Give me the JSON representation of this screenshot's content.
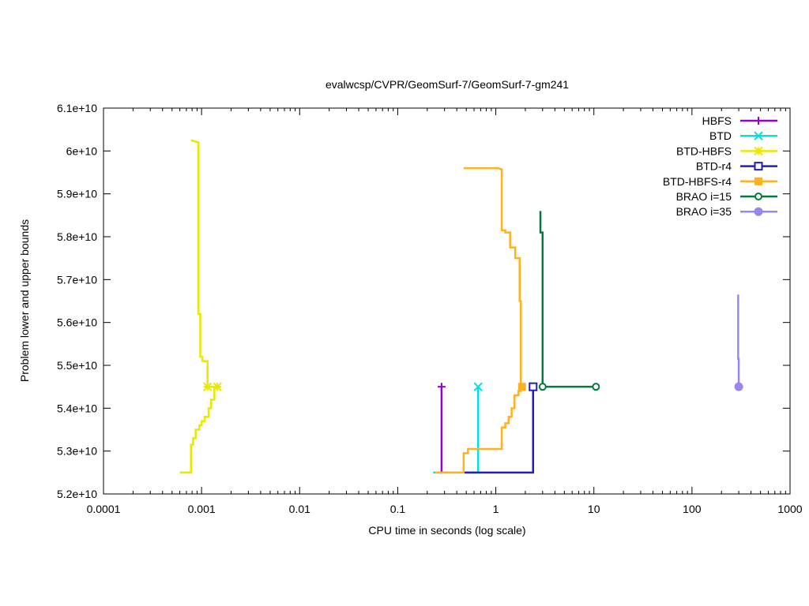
{
  "chart_data": {
    "type": "line",
    "title": "evalwcsp/CVPR/GeomSurf-7/GeomSurf-7-gm241",
    "xlabel": "CPU time in seconds (log scale)",
    "ylabel": "Problem lower and upper bounds",
    "x_scale": "log",
    "xlim": [
      0.0001,
      1000
    ],
    "ylim": [
      52000000000,
      61000000000
    ],
    "x_ticks": [
      {
        "value": 0.0001,
        "label": "0.0001"
      },
      {
        "value": 0.001,
        "label": "0.001"
      },
      {
        "value": 0.01,
        "label": "0.01"
      },
      {
        "value": 0.1,
        "label": "0.1"
      },
      {
        "value": 1,
        "label": "1"
      },
      {
        "value": 10,
        "label": "10"
      },
      {
        "value": 100,
        "label": "100"
      },
      {
        "value": 1000,
        "label": "1000"
      }
    ],
    "y_ticks": [
      {
        "value": 52000000000,
        "label": "5.2e+10"
      },
      {
        "value": 53000000000,
        "label": "5.3e+10"
      },
      {
        "value": 54000000000,
        "label": "5.4e+10"
      },
      {
        "value": 55000000000,
        "label": "5.5e+10"
      },
      {
        "value": 56000000000,
        "label": "5.6e+10"
      },
      {
        "value": 57000000000,
        "label": "5.7e+10"
      },
      {
        "value": 58000000000,
        "label": "5.8e+10"
      },
      {
        "value": 59000000000,
        "label": "5.9e+10"
      },
      {
        "value": 60000000000,
        "label": "6e+10"
      },
      {
        "value": 61000000000,
        "label": "6.1e+10"
      }
    ],
    "grid": false,
    "legend_position": "top-right",
    "series": [
      {
        "name": "HBFS",
        "color": "#9400d3",
        "marker": "plus",
        "points": [
          [
            0.26,
            52500000000
          ],
          [
            0.28,
            52500000000
          ],
          [
            0.28,
            54500000000
          ]
        ],
        "marker_points": [
          [
            0.28,
            54500000000
          ]
        ]
      },
      {
        "name": "BTD",
        "color": "#00e0e0",
        "marker": "cross",
        "points": [
          [
            0.23,
            52500000000
          ],
          [
            0.66,
            52500000000
          ],
          [
            0.66,
            54500000000
          ]
        ],
        "marker_points": [
          [
            0.66,
            54500000000
          ]
        ]
      },
      {
        "name": "BTD-HBFS",
        "color": "#e8e800",
        "marker": "star",
        "points": [
          [
            0.0006,
            52500000000
          ],
          [
            0.00078,
            52500000000
          ],
          [
            0.00078,
            53150000000
          ],
          [
            0.00082,
            53150000000
          ],
          [
            0.00082,
            53300000000
          ],
          [
            0.00087,
            53300000000
          ],
          [
            0.00087,
            53500000000
          ],
          [
            0.00095,
            53500000000
          ],
          [
            0.00095,
            53600000000
          ],
          [
            0.001,
            53600000000
          ],
          [
            0.001,
            53700000000
          ],
          [
            0.00108,
            53700000000
          ],
          [
            0.00108,
            53800000000
          ],
          [
            0.00118,
            53800000000
          ],
          [
            0.00118,
            54000000000
          ],
          [
            0.00125,
            54000000000
          ],
          [
            0.00125,
            54200000000
          ],
          [
            0.00135,
            54200000000
          ],
          [
            0.00135,
            54500000000
          ],
          [
            0.00115,
            54500000000
          ],
          [
            0.00115,
            55100000000
          ],
          [
            0.00102,
            55100000000
          ],
          [
            0.00102,
            55200000000
          ],
          [
            0.00097,
            55200000000
          ],
          [
            0.00097,
            56200000000
          ],
          [
            0.00093,
            56200000000
          ],
          [
            0.00093,
            60200000000
          ],
          [
            0.00078,
            60250000000
          ]
        ],
        "marker_points": [
          [
            0.00115,
            54500000000
          ],
          [
            0.00145,
            54500000000
          ]
        ]
      },
      {
        "name": "BTD-r4",
        "color": "#1f1fbf",
        "marker": "open-square",
        "points": [
          [
            0.48,
            52500000000
          ],
          [
            2.4,
            52500000000
          ],
          [
            2.4,
            54500000000
          ]
        ],
        "marker_points": [
          [
            2.4,
            54500000000
          ]
        ]
      },
      {
        "name": "BTD-HBFS-r4",
        "color": "#ffb21f",
        "marker": "filled-square",
        "points": [
          [
            0.24,
            52500000000
          ],
          [
            0.47,
            52500000000
          ],
          [
            0.47,
            52950000000
          ],
          [
            0.52,
            52950000000
          ],
          [
            0.52,
            53050000000
          ],
          [
            1.15,
            53050000000
          ],
          [
            1.15,
            53550000000
          ],
          [
            1.25,
            53550000000
          ],
          [
            1.25,
            53650000000
          ],
          [
            1.35,
            53650000000
          ],
          [
            1.35,
            53800000000
          ],
          [
            1.45,
            53800000000
          ],
          [
            1.45,
            54000000000
          ],
          [
            1.55,
            54000000000
          ],
          [
            1.55,
            54300000000
          ],
          [
            1.7,
            54300000000
          ],
          [
            1.7,
            54400000000
          ],
          [
            1.8,
            54400000000
          ],
          [
            1.8,
            56500000000
          ],
          [
            1.75,
            56500000000
          ],
          [
            1.75,
            57500000000
          ],
          [
            1.58,
            57500000000
          ],
          [
            1.58,
            57750000000
          ],
          [
            1.4,
            57750000000
          ],
          [
            1.4,
            58100000000
          ],
          [
            1.25,
            58100000000
          ],
          [
            1.25,
            58150000000
          ],
          [
            1.15,
            58150000000
          ],
          [
            1.15,
            59570000000
          ],
          [
            1.05,
            59600000000
          ],
          [
            0.47,
            59600000000
          ]
        ],
        "marker_points": [
          [
            1.85,
            54500000000
          ]
        ]
      },
      {
        "name": "BRAO i=15",
        "color": "#007a3d",
        "marker": "open-circle",
        "points": [
          [
            11,
            54500000000
          ],
          [
            3.0,
            54500000000
          ],
          [
            3.0,
            58100000000
          ],
          [
            2.85,
            58100000000
          ],
          [
            2.85,
            58600000000
          ]
        ],
        "marker_points": [
          [
            3.0,
            54500000000
          ],
          [
            10.5,
            54500000000
          ]
        ]
      },
      {
        "name": "BRAO i=35",
        "color": "#9a86ee",
        "marker": "filled-circle",
        "points": [
          [
            300,
            54500000000
          ],
          [
            300,
            55150000000
          ],
          [
            296,
            55150000000
          ],
          [
            296,
            56650000000
          ]
        ],
        "marker_points": [
          [
            300,
            54500000000
          ]
        ]
      }
    ]
  }
}
